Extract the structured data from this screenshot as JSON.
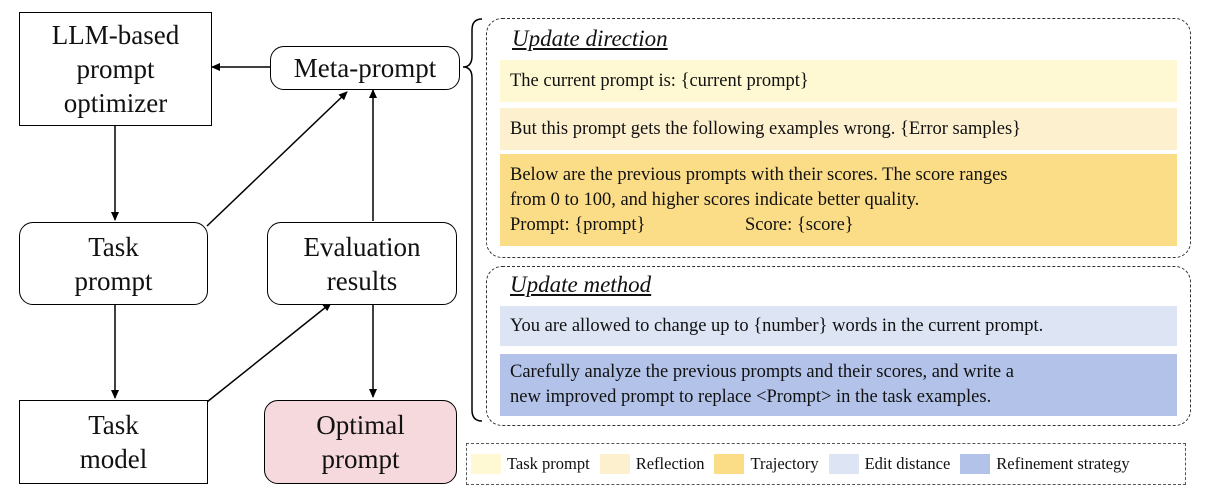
{
  "flow": {
    "optimizer": "LLM-based prompt optimizer",
    "meta_prompt": "Meta-prompt",
    "task_prompt": "Task prompt",
    "evaluation": "Evaluation results",
    "task_model": "Task model",
    "optimal": "Optimal prompt"
  },
  "update_direction": {
    "title": "Update direction",
    "line1": "The current prompt is: {current prompt}",
    "line2": "But this prompt gets the following examples wrong. {Error samples}",
    "line3a": "Below are the previous prompts with their scores. The score ranges",
    "line3b": "from 0 to 100, and higher scores indicate better quality.",
    "line3c_prompt": "Prompt: {prompt}",
    "line3c_score": "Score: {score}"
  },
  "update_method": {
    "title": "Update method",
    "line1": "You are allowed to change up to {number} words in the current prompt.",
    "line2a": "Carefully analyze the previous prompts and their scores, and write a",
    "line2b": "new improved prompt to replace <Prompt> in the task examples."
  },
  "legend": [
    {
      "label": "Task prompt",
      "color": "#fef9d3"
    },
    {
      "label": "Reflection",
      "color": "#fdf0cf"
    },
    {
      "label": "Trajectory",
      "color": "#fbdc87"
    },
    {
      "label": "Edit distance",
      "color": "#dde4f4"
    },
    {
      "label": "Refinement strategy",
      "color": "#b3c2e8"
    }
  ],
  "colors": {
    "task_prompt": "#fef9d3",
    "reflection": "#fdf0cf",
    "trajectory": "#fbdc87",
    "edit_distance": "#dde4f4",
    "refinement": "#b3c2e8",
    "optimal_fill": "#f6d9dd"
  }
}
